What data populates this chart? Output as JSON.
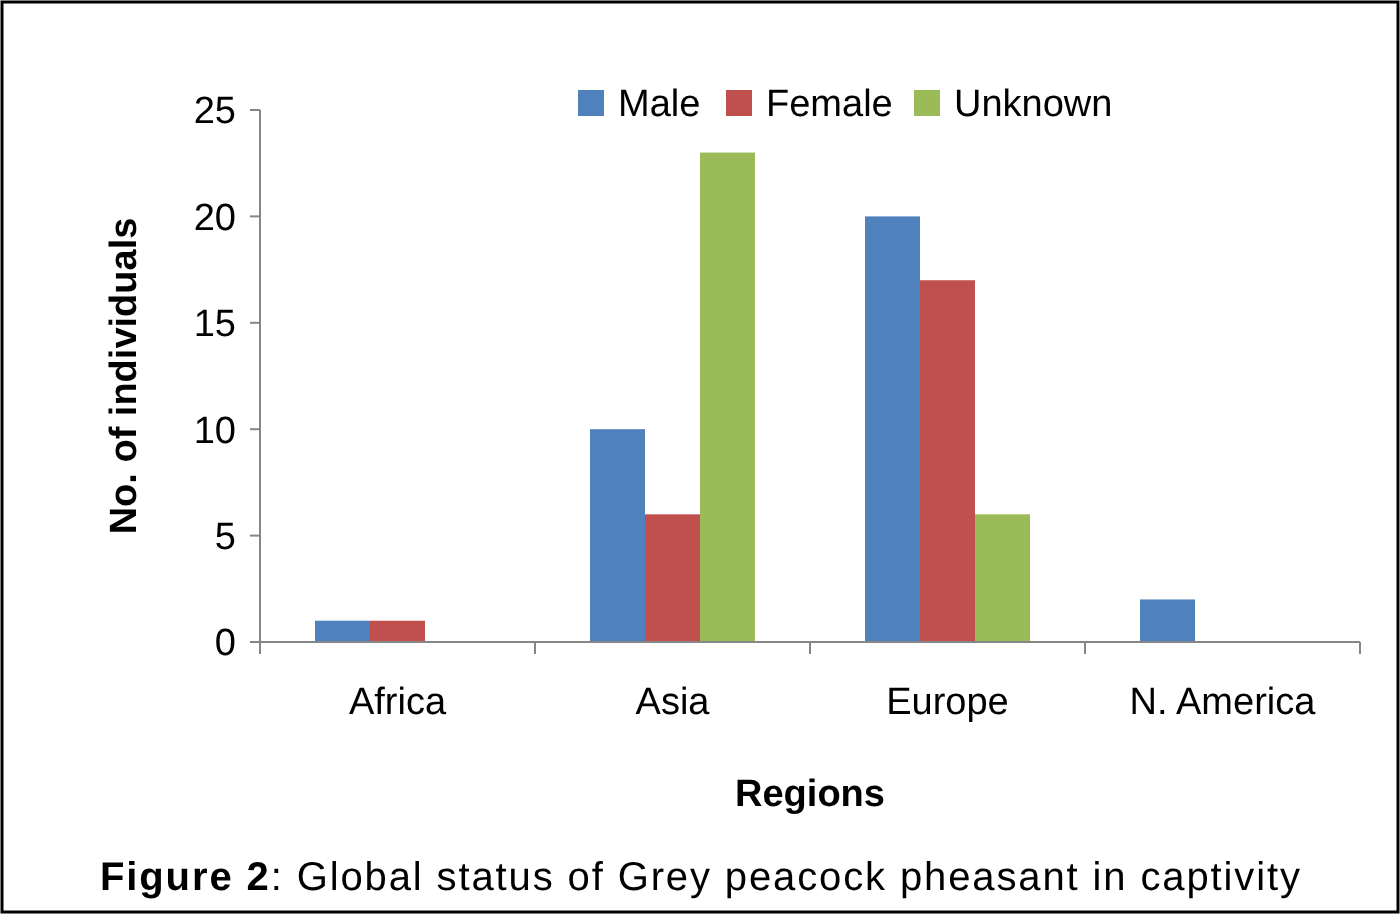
{
  "chart_data": {
    "type": "bar",
    "xlabel": "Regions",
    "ylabel": "No. of individuals",
    "categories": [
      "Africa",
      "Asia",
      "Europe",
      "N. America"
    ],
    "series": [
      {
        "name": "Male",
        "color": "#4f81bd",
        "values": [
          1,
          10,
          20,
          2
        ]
      },
      {
        "name": "Female",
        "color": "#c0504d",
        "values": [
          1,
          6,
          17,
          0
        ]
      },
      {
        "name": "Unknown",
        "color": "#9bbb59",
        "values": [
          0,
          23,
          6,
          0
        ]
      }
    ],
    "ylim": [
      0,
      25
    ],
    "yticks": [
      0,
      5,
      10,
      15,
      20,
      25
    ],
    "grid": false,
    "legend": "top",
    "annotations": [
      "Figure 2:  Global status of Grey peacock pheasant in captivity"
    ]
  }
}
